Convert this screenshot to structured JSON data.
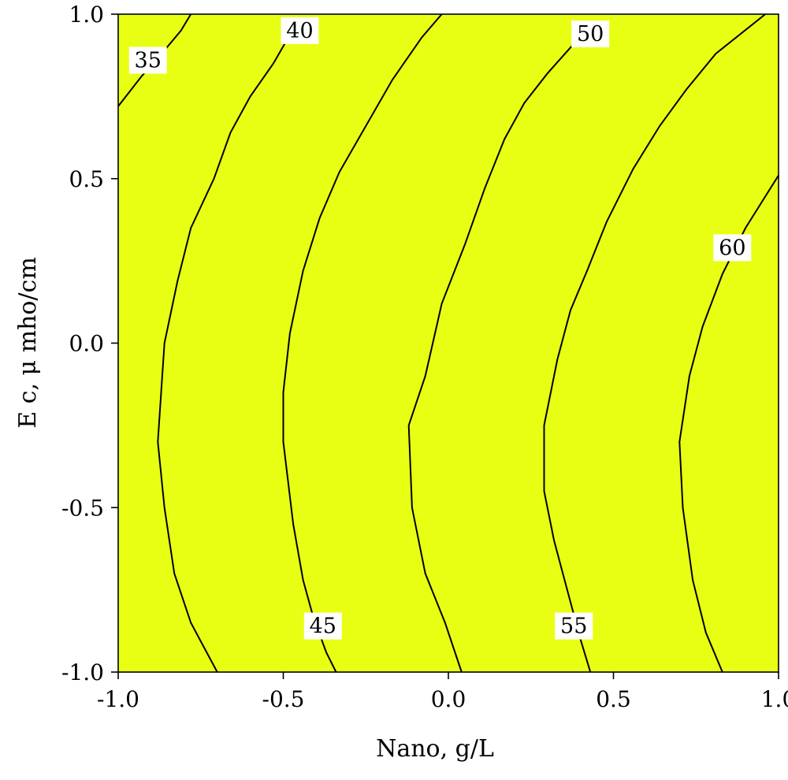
{
  "chart_data": {
    "type": "contour",
    "xlabel": "Nano, g/L",
    "ylabel": "E c,  μ mho/cm",
    "xlim": [
      -1.0,
      1.0
    ],
    "ylim": [
      -1.0,
      1.0
    ],
    "x_ticks": [
      -1.0,
      -0.5,
      0.0,
      0.5,
      1.0
    ],
    "y_ticks": [
      -1.0,
      -0.5,
      0.0,
      0.5,
      1.0
    ],
    "x_tick_labels": [
      "-1.0",
      "-0.5",
      "0.0",
      "0.5",
      "1.0"
    ],
    "y_tick_labels": [
      "-1.0",
      "-0.5",
      "0.0",
      "0.5",
      "1.0"
    ],
    "fill_color": "#E8FF14",
    "line_color": "#000000",
    "grid": false,
    "contours": [
      {
        "level": 35,
        "label": "35",
        "label_at": [
          -0.91,
          0.86
        ],
        "points": [
          [
            -1.0,
            0.72
          ],
          [
            -0.93,
            0.81
          ],
          [
            -0.86,
            0.89
          ],
          [
            -0.81,
            0.95
          ],
          [
            -0.78,
            1.0
          ]
        ]
      },
      {
        "level": 40,
        "label": "40",
        "label_at": [
          -0.45,
          0.95
        ],
        "points": [
          [
            -0.49,
            0.92
          ],
          [
            -0.53,
            0.85
          ],
          [
            -0.6,
            0.75
          ],
          [
            -0.66,
            0.64
          ],
          [
            -0.71,
            0.5
          ],
          [
            -0.78,
            0.35
          ],
          [
            -0.82,
            0.19
          ],
          [
            -0.86,
            0.0
          ],
          [
            -0.88,
            -0.3
          ],
          [
            -0.86,
            -0.5
          ],
          [
            -0.83,
            -0.7
          ],
          [
            -0.78,
            -0.85
          ],
          [
            -0.7,
            -1.0
          ]
        ]
      },
      {
        "level": 45,
        "label": "45",
        "label_at": [
          -0.38,
          -0.86
        ],
        "points": [
          [
            -0.34,
            -1.0
          ],
          [
            -0.37,
            -0.94
          ],
          [
            -0.41,
            -0.83
          ],
          [
            -0.44,
            -0.72
          ],
          [
            -0.47,
            -0.55
          ],
          [
            -0.5,
            -0.3
          ],
          [
            -0.5,
            -0.15
          ],
          [
            -0.48,
            0.03
          ],
          [
            -0.44,
            0.22
          ],
          [
            -0.39,
            0.38
          ],
          [
            -0.33,
            0.52
          ],
          [
            -0.25,
            0.66
          ],
          [
            -0.17,
            0.8
          ],
          [
            -0.08,
            0.93
          ],
          [
            -0.02,
            1.0
          ]
        ]
      },
      {
        "level": 50,
        "label": "50",
        "label_at": [
          0.43,
          0.94
        ],
        "points": [
          [
            0.38,
            0.91
          ],
          [
            0.3,
            0.82
          ],
          [
            0.23,
            0.73
          ],
          [
            0.17,
            0.62
          ],
          [
            0.11,
            0.47
          ],
          [
            0.05,
            0.3
          ],
          [
            -0.02,
            0.12
          ],
          [
            -0.07,
            -0.1
          ],
          [
            -0.12,
            -0.25
          ],
          [
            -0.11,
            -0.5
          ],
          [
            -0.07,
            -0.7
          ],
          [
            -0.01,
            -0.85
          ],
          [
            0.04,
            -1.0
          ]
        ]
      },
      {
        "level": 55,
        "label": "55",
        "label_at": [
          0.38,
          -0.86
        ],
        "points": [
          [
            0.43,
            -1.0
          ],
          [
            0.4,
            -0.9
          ],
          [
            0.36,
            -0.75
          ],
          [
            0.32,
            -0.6
          ],
          [
            0.29,
            -0.45
          ],
          [
            0.29,
            -0.25
          ],
          [
            0.33,
            -0.05
          ],
          [
            0.37,
            0.1
          ],
          [
            0.42,
            0.22
          ],
          [
            0.48,
            0.37
          ],
          [
            0.56,
            0.53
          ],
          [
            0.64,
            0.66
          ],
          [
            0.72,
            0.77
          ],
          [
            0.81,
            0.88
          ],
          [
            0.91,
            0.96
          ],
          [
            0.96,
            1.0
          ]
        ]
      },
      {
        "level": 60,
        "label": "60",
        "label_at": [
          0.86,
          0.29
        ],
        "points": [
          [
            1.0,
            0.51
          ],
          [
            0.95,
            0.43
          ],
          [
            0.9,
            0.35
          ],
          [
            0.83,
            0.21
          ],
          [
            0.77,
            0.05
          ],
          [
            0.73,
            -0.1
          ],
          [
            0.7,
            -0.3
          ],
          [
            0.71,
            -0.5
          ],
          [
            0.74,
            -0.72
          ],
          [
            0.78,
            -0.88
          ],
          [
            0.83,
            -1.0
          ]
        ]
      }
    ]
  }
}
